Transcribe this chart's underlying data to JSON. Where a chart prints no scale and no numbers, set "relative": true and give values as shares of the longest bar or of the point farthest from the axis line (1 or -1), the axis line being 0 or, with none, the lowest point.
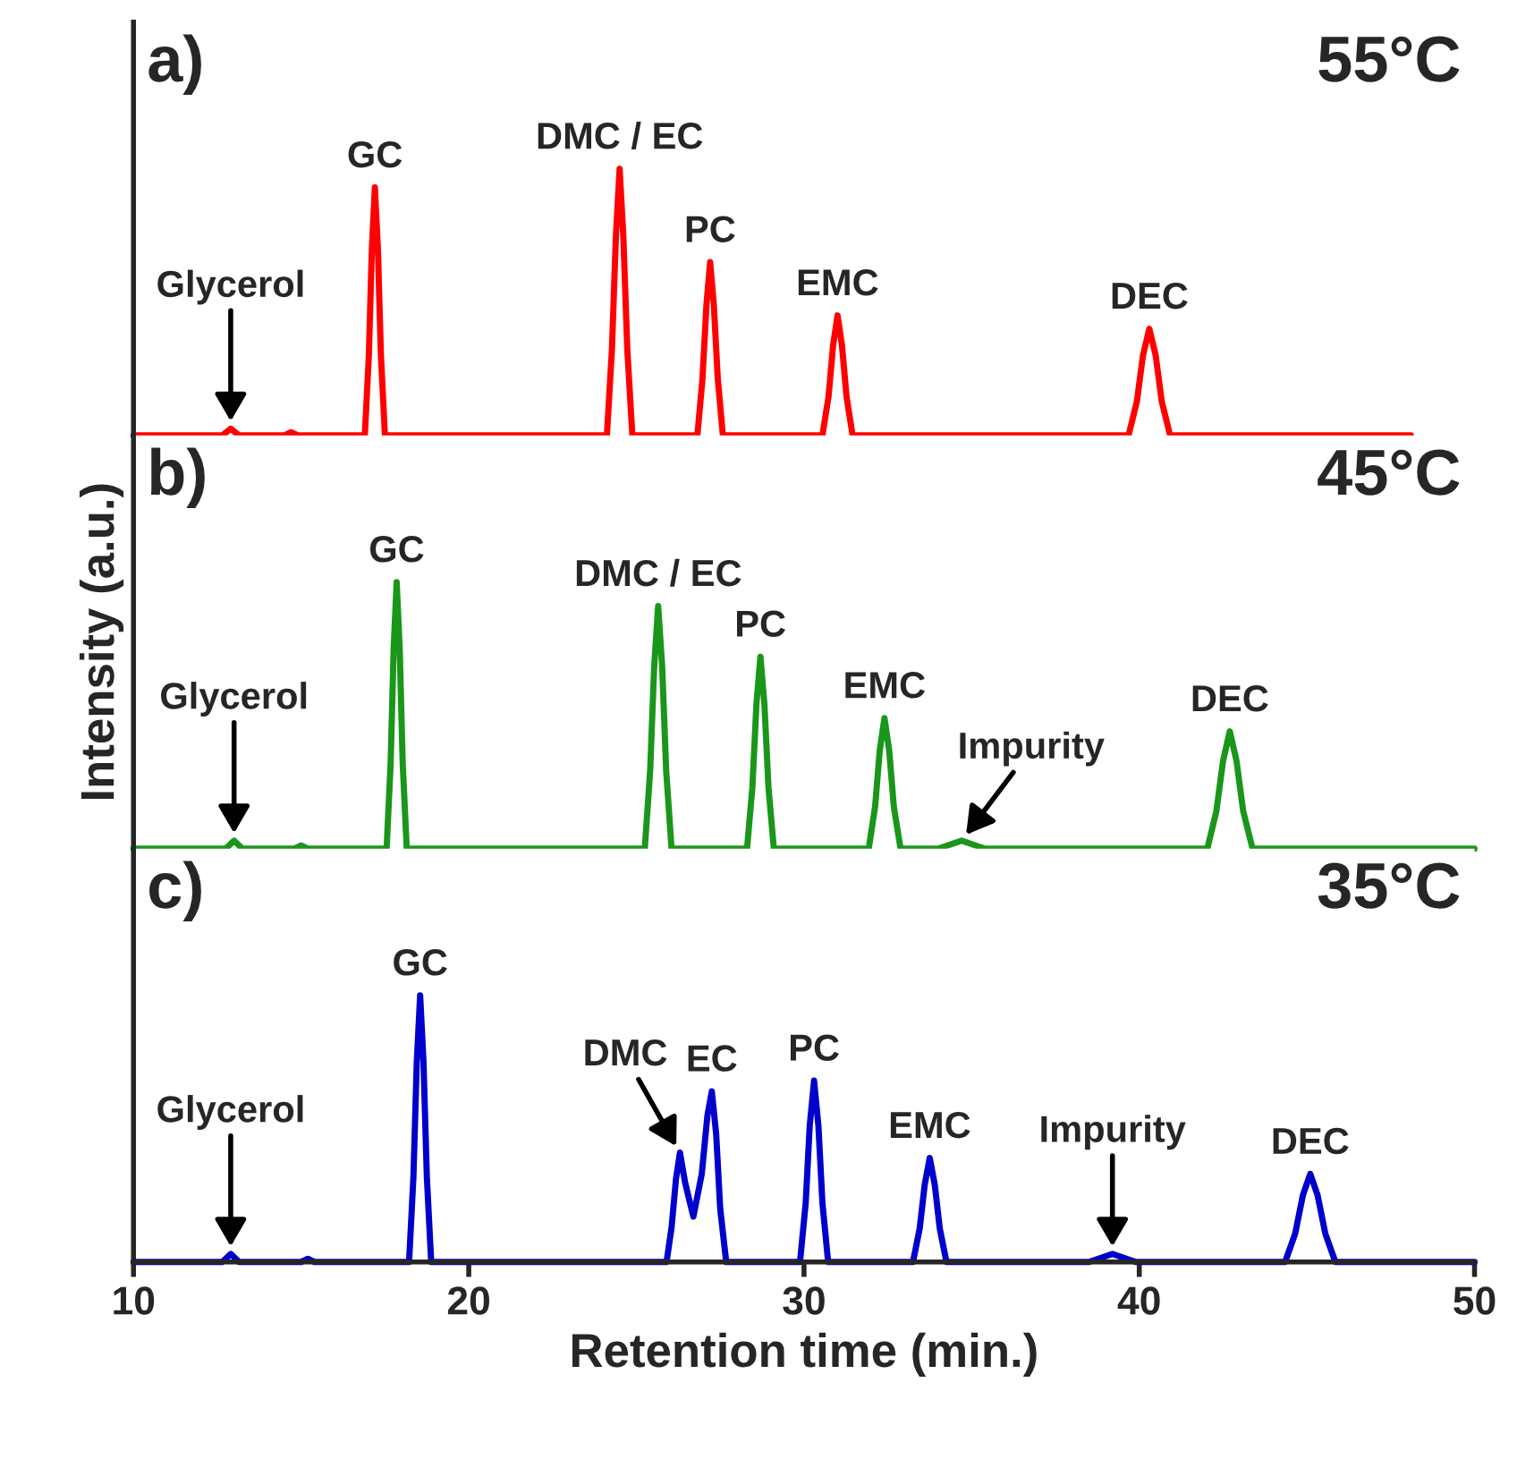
{
  "chart_data": [
    {
      "type": "line",
      "relative": true,
      "xlim": [
        10,
        50
      ],
      "tick_labels": false,
      "series": [
        {
          "color": "#ff0000",
          "x": [
            10,
            12.65,
            12.9,
            13.15,
            14.5,
            14.7,
            14.9,
            16.9,
            17.02,
            17.11,
            17.2,
            17.29,
            17.38,
            17.5,
            24.12,
            24.27,
            24.39,
            24.5,
            24.61,
            24.73,
            24.88,
            26.82,
            26.97,
            27.09,
            27.2,
            27.31,
            27.43,
            27.58,
            30.55,
            30.73,
            30.87,
            31.0,
            31.13,
            31.27,
            31.45,
            39.68,
            39.93,
            40.11,
            40.3,
            40.49,
            40.67,
            40.92,
            48.1
          ],
          "values": [
            0,
            0,
            0.025,
            0,
            0,
            0.012,
            0,
            0,
            0.3,
            0.7,
            0.93,
            0.7,
            0.3,
            0,
            0,
            0.32,
            0.75,
            1,
            0.75,
            0.32,
            0,
            0,
            0.21,
            0.49,
            0.65,
            0.49,
            0.21,
            0,
            0,
            0.144,
            0.34,
            0.45,
            0.34,
            0.144,
            0,
            0,
            0.128,
            0.3,
            0.4,
            0.3,
            0.128,
            0,
            0
          ]
        }
      ],
      "annotations": [
        "a)",
        "55°C",
        {
          "text": "Glycerol",
          "x": 12.9,
          "y": 0.025
        },
        {
          "text": "GC",
          "x": 17.2,
          "y": 0.93
        },
        {
          "text": "DMC / EC",
          "x": 24.5,
          "y": 1
        },
        {
          "text": "PC",
          "x": 27.2,
          "y": 0.65
        },
        {
          "text": "EMC",
          "x": 31.0,
          "y": 0.45
        },
        {
          "text": "DEC",
          "x": 40.3,
          "y": 0.4
        }
      ]
    },
    {
      "type": "line",
      "relative": true,
      "xlim": [
        10,
        50
      ],
      "tick_labels": false,
      "ylabel": "Intensity (a.u.)",
      "series": [
        {
          "color": "#1a961a",
          "x": [
            10,
            12.75,
            13.0,
            13.25,
            14.8,
            15.0,
            15.2,
            17.55,
            17.67,
            17.76,
            17.85,
            17.94,
            18.03,
            18.15,
            25.25,
            25.41,
            25.53,
            25.65,
            25.77,
            25.89,
            26.05,
            28.3,
            28.46,
            28.58,
            28.7,
            28.82,
            28.94,
            29.1,
            31.93,
            32.12,
            32.26,
            32.4,
            32.54,
            32.68,
            32.88,
            34.0,
            34.7,
            35.4,
            42.03,
            42.3,
            42.5,
            42.7,
            42.9,
            43.1,
            43.38,
            50
          ],
          "values": [
            0,
            0,
            0.03,
            0,
            0,
            0.012,
            0,
            0,
            0.32,
            0.75,
            1,
            0.75,
            0.32,
            0,
            0,
            0.29,
            0.68,
            0.91,
            0.68,
            0.29,
            0,
            0,
            0.23,
            0.54,
            0.72,
            0.54,
            0.23,
            0,
            0,
            0.157,
            0.37,
            0.49,
            0.37,
            0.157,
            0,
            0,
            0.03,
            0,
            0,
            0.141,
            0.33,
            0.44,
            0.33,
            0.141,
            0,
            0
          ]
        }
      ],
      "annotations": [
        "b)",
        "45°C",
        {
          "text": "Glycerol",
          "x": 13.0,
          "y": 0.03
        },
        {
          "text": "GC",
          "x": 17.85,
          "y": 1
        },
        {
          "text": "DMC / EC",
          "x": 25.65,
          "y": 0.91
        },
        {
          "text": "PC",
          "x": 28.7,
          "y": 0.72
        },
        {
          "text": "EMC",
          "x": 32.4,
          "y": 0.49
        },
        {
          "text": "Impurity",
          "x": 34.7,
          "y": 0.03
        },
        {
          "text": "DEC",
          "x": 42.7,
          "y": 0.44
        }
      ]
    },
    {
      "type": "line",
      "relative": true,
      "xlim": [
        10,
        50
      ],
      "xticks": [
        10,
        20,
        30,
        40,
        50
      ],
      "tick_labels": "x",
      "xlabel": "Retention time (min.)",
      "series": [
        {
          "color": "#0000cc",
          "x": [
            10,
            12.65,
            12.9,
            13.15,
            15.0,
            15.2,
            15.4,
            18.22,
            18.35,
            18.45,
            18.55,
            18.65,
            18.75,
            18.88,
            25.9,
            26.05,
            26.18,
            26.3,
            26.45,
            26.7,
            26.95,
            27.12,
            27.25,
            27.38,
            27.5,
            27.68,
            29.88,
            30.05,
            30.17,
            30.3,
            30.43,
            30.55,
            30.72,
            33.25,
            33.45,
            33.6,
            33.75,
            33.9,
            34.05,
            34.25,
            38.5,
            39.2,
            39.9,
            44.35,
            44.65,
            44.88,
            45.1,
            45.32,
            45.55,
            45.85,
            50
          ],
          "values": [
            0,
            0,
            0.03,
            0,
            0,
            0.012,
            0,
            0,
            0.32,
            0.75,
            1,
            0.75,
            0.32,
            0,
            0,
            0.13,
            0.31,
            0.41,
            0.3,
            0.17,
            0.33,
            0.55,
            0.64,
            0.48,
            0.2,
            0,
            0,
            0.22,
            0.51,
            0.68,
            0.51,
            0.22,
            0,
            0,
            0.125,
            0.29,
            0.39,
            0.29,
            0.125,
            0,
            0,
            0.03,
            0,
            0,
            0.106,
            0.25,
            0.33,
            0.25,
            0.106,
            0,
            0
          ]
        }
      ],
      "annotations": [
        "c)",
        "35°C",
        {
          "text": "Glycerol",
          "x": 12.9,
          "y": 0.03
        },
        {
          "text": "GC",
          "x": 18.55,
          "y": 1
        },
        {
          "text": "DMC",
          "x": 26.3,
          "y": 0.41
        },
        {
          "text": "EC",
          "x": 27.25,
          "y": 0.64
        },
        {
          "text": "PC",
          "x": 30.3,
          "y": 0.68
        },
        {
          "text": "EMC",
          "x": 33.75,
          "y": 0.39
        },
        {
          "text": "Impurity",
          "x": 39.2,
          "y": 0.03
        },
        {
          "text": "DEC",
          "x": 45.1,
          "y": 0.33
        }
      ]
    }
  ]
}
